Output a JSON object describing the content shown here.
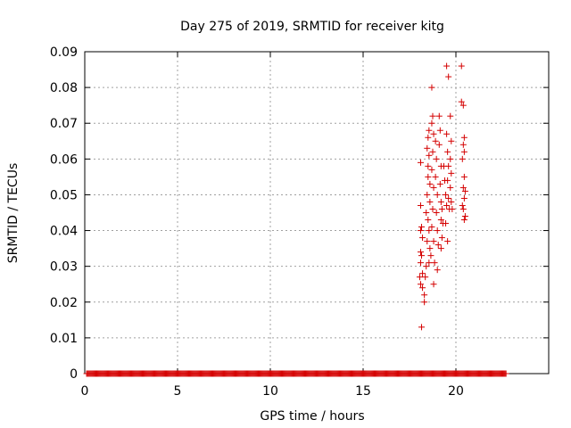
{
  "chart_data": {
    "type": "scatter",
    "title": "Day 275 of 2019, SRMTID for receiver kitg",
    "xlabel": "GPS time / hours",
    "ylabel": "SRMTID / TECUs",
    "xlim": [
      0,
      25
    ],
    "ylim": [
      0,
      0.09
    ],
    "x_ticks": [
      "0",
      "5",
      "10",
      "15",
      "20"
    ],
    "y_ticks": [
      "0",
      "0.01",
      "0.02",
      "0.03",
      "0.04",
      "0.05",
      "0.06",
      "0.07",
      "0.08",
      "0.09"
    ],
    "grid": true,
    "marker": "+",
    "color": "#d40000",
    "zero_band": {
      "x_start": 0.1,
      "x_end": 22.7,
      "step": 0.05,
      "y": 0
    },
    "series": [
      {
        "name": "SRMTID",
        "points": [
          [
            18.1,
            0.059
          ],
          [
            18.1,
            0.047
          ],
          [
            18.15,
            0.041
          ],
          [
            18.1,
            0.04
          ],
          [
            18.2,
            0.038
          ],
          [
            18.1,
            0.034
          ],
          [
            18.15,
            0.033
          ],
          [
            18.1,
            0.031
          ],
          [
            18.2,
            0.028
          ],
          [
            18.05,
            0.027
          ],
          [
            18.1,
            0.025
          ],
          [
            18.2,
            0.024
          ],
          [
            18.3,
            0.022
          ],
          [
            18.3,
            0.02
          ],
          [
            18.15,
            0.013
          ],
          [
            18.35,
            0.027
          ],
          [
            18.4,
            0.03
          ],
          [
            18.4,
            0.045
          ],
          [
            18.45,
            0.05
          ],
          [
            18.5,
            0.055
          ],
          [
            18.5,
            0.058
          ],
          [
            18.55,
            0.061
          ],
          [
            18.45,
            0.063
          ],
          [
            18.5,
            0.066
          ],
          [
            18.55,
            0.068
          ],
          [
            18.6,
            0.053
          ],
          [
            18.6,
            0.048
          ],
          [
            18.5,
            0.043
          ],
          [
            18.55,
            0.04
          ],
          [
            18.45,
            0.037
          ],
          [
            18.6,
            0.035
          ],
          [
            18.65,
            0.033
          ],
          [
            18.55,
            0.031
          ],
          [
            18.7,
            0.08
          ],
          [
            18.75,
            0.072
          ],
          [
            18.7,
            0.07
          ],
          [
            18.8,
            0.067
          ],
          [
            18.75,
            0.062
          ],
          [
            18.7,
            0.057
          ],
          [
            18.8,
            0.052
          ],
          [
            18.75,
            0.046
          ],
          [
            18.7,
            0.041
          ],
          [
            18.8,
            0.037
          ],
          [
            18.85,
            0.031
          ],
          [
            18.8,
            0.025
          ],
          [
            18.9,
            0.065
          ],
          [
            18.95,
            0.06
          ],
          [
            18.9,
            0.055
          ],
          [
            19.0,
            0.05
          ],
          [
            18.95,
            0.045
          ],
          [
            19.0,
            0.04
          ],
          [
            19.05,
            0.036
          ],
          [
            19.0,
            0.029
          ],
          [
            19.1,
            0.072
          ],
          [
            19.15,
            0.068
          ],
          [
            19.1,
            0.064
          ],
          [
            19.2,
            0.058
          ],
          [
            19.15,
            0.053
          ],
          [
            19.2,
            0.048
          ],
          [
            19.25,
            0.046
          ],
          [
            19.2,
            0.043
          ],
          [
            19.3,
            0.042
          ],
          [
            19.25,
            0.038
          ],
          [
            19.2,
            0.035
          ],
          [
            19.35,
            0.058
          ],
          [
            19.4,
            0.054
          ],
          [
            19.45,
            0.05
          ],
          [
            19.5,
            0.047
          ],
          [
            19.45,
            0.042
          ],
          [
            19.5,
            0.067
          ],
          [
            19.55,
            0.062
          ],
          [
            19.6,
            0.058
          ],
          [
            19.55,
            0.054
          ],
          [
            19.6,
            0.049
          ],
          [
            19.65,
            0.046
          ],
          [
            19.55,
            0.037
          ],
          [
            19.5,
            0.086
          ],
          [
            19.6,
            0.083
          ],
          [
            19.7,
            0.072
          ],
          [
            19.75,
            0.065
          ],
          [
            19.7,
            0.06
          ],
          [
            19.75,
            0.056
          ],
          [
            19.7,
            0.052
          ],
          [
            19.75,
            0.048
          ],
          [
            19.8,
            0.046
          ],
          [
            20.3,
            0.086
          ],
          [
            20.3,
            0.076
          ],
          [
            20.4,
            0.075
          ],
          [
            20.45,
            0.066
          ],
          [
            20.4,
            0.064
          ],
          [
            20.45,
            0.062
          ],
          [
            20.35,
            0.06
          ],
          [
            20.45,
            0.055
          ],
          [
            20.4,
            0.052
          ],
          [
            20.5,
            0.051
          ],
          [
            20.45,
            0.049
          ],
          [
            20.35,
            0.047
          ],
          [
            20.4,
            0.046
          ],
          [
            20.5,
            0.044
          ],
          [
            20.45,
            0.043
          ]
        ]
      }
    ]
  }
}
